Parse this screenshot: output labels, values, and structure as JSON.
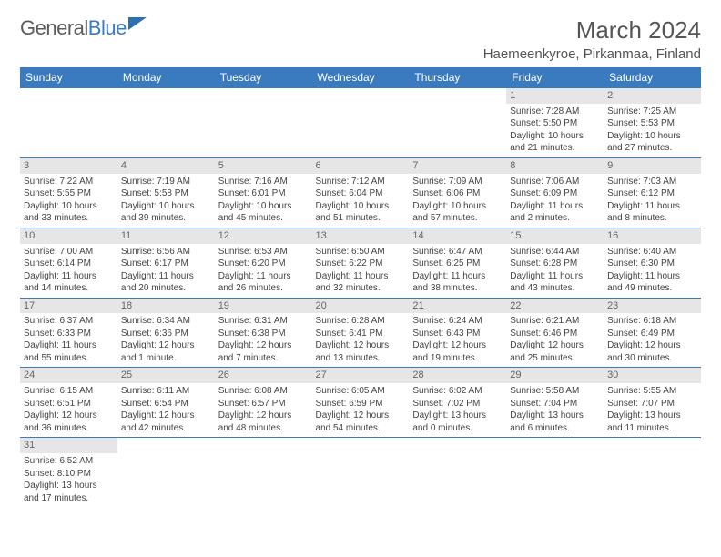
{
  "brand": {
    "part1": "General",
    "part2": "Blue"
  },
  "title": "March 2024",
  "location": "Haemeenkyroe, Pirkanmaa, Finland",
  "colors": {
    "headerBg": "#3a7bbf",
    "headerText": "#ffffff",
    "dayNumBg": "#e6e6e6",
    "text": "#444444",
    "rowBorder": "#3a7bbf"
  },
  "dayNames": [
    "Sunday",
    "Monday",
    "Tuesday",
    "Wednesday",
    "Thursday",
    "Friday",
    "Saturday"
  ],
  "weeks": [
    [
      {
        "n": "",
        "s": "",
        "t": "",
        "d": ""
      },
      {
        "n": "",
        "s": "",
        "t": "",
        "d": ""
      },
      {
        "n": "",
        "s": "",
        "t": "",
        "d": ""
      },
      {
        "n": "",
        "s": "",
        "t": "",
        "d": ""
      },
      {
        "n": "",
        "s": "",
        "t": "",
        "d": ""
      },
      {
        "n": "1",
        "s": "Sunrise: 7:28 AM",
        "t": "Sunset: 5:50 PM",
        "d": "Daylight: 10 hours and 21 minutes."
      },
      {
        "n": "2",
        "s": "Sunrise: 7:25 AM",
        "t": "Sunset: 5:53 PM",
        "d": "Daylight: 10 hours and 27 minutes."
      }
    ],
    [
      {
        "n": "3",
        "s": "Sunrise: 7:22 AM",
        "t": "Sunset: 5:55 PM",
        "d": "Daylight: 10 hours and 33 minutes."
      },
      {
        "n": "4",
        "s": "Sunrise: 7:19 AM",
        "t": "Sunset: 5:58 PM",
        "d": "Daylight: 10 hours and 39 minutes."
      },
      {
        "n": "5",
        "s": "Sunrise: 7:16 AM",
        "t": "Sunset: 6:01 PM",
        "d": "Daylight: 10 hours and 45 minutes."
      },
      {
        "n": "6",
        "s": "Sunrise: 7:12 AM",
        "t": "Sunset: 6:04 PM",
        "d": "Daylight: 10 hours and 51 minutes."
      },
      {
        "n": "7",
        "s": "Sunrise: 7:09 AM",
        "t": "Sunset: 6:06 PM",
        "d": "Daylight: 10 hours and 57 minutes."
      },
      {
        "n": "8",
        "s": "Sunrise: 7:06 AM",
        "t": "Sunset: 6:09 PM",
        "d": "Daylight: 11 hours and 2 minutes."
      },
      {
        "n": "9",
        "s": "Sunrise: 7:03 AM",
        "t": "Sunset: 6:12 PM",
        "d": "Daylight: 11 hours and 8 minutes."
      }
    ],
    [
      {
        "n": "10",
        "s": "Sunrise: 7:00 AM",
        "t": "Sunset: 6:14 PM",
        "d": "Daylight: 11 hours and 14 minutes."
      },
      {
        "n": "11",
        "s": "Sunrise: 6:56 AM",
        "t": "Sunset: 6:17 PM",
        "d": "Daylight: 11 hours and 20 minutes."
      },
      {
        "n": "12",
        "s": "Sunrise: 6:53 AM",
        "t": "Sunset: 6:20 PM",
        "d": "Daylight: 11 hours and 26 minutes."
      },
      {
        "n": "13",
        "s": "Sunrise: 6:50 AM",
        "t": "Sunset: 6:22 PM",
        "d": "Daylight: 11 hours and 32 minutes."
      },
      {
        "n": "14",
        "s": "Sunrise: 6:47 AM",
        "t": "Sunset: 6:25 PM",
        "d": "Daylight: 11 hours and 38 minutes."
      },
      {
        "n": "15",
        "s": "Sunrise: 6:44 AM",
        "t": "Sunset: 6:28 PM",
        "d": "Daylight: 11 hours and 43 minutes."
      },
      {
        "n": "16",
        "s": "Sunrise: 6:40 AM",
        "t": "Sunset: 6:30 PM",
        "d": "Daylight: 11 hours and 49 minutes."
      }
    ],
    [
      {
        "n": "17",
        "s": "Sunrise: 6:37 AM",
        "t": "Sunset: 6:33 PM",
        "d": "Daylight: 11 hours and 55 minutes."
      },
      {
        "n": "18",
        "s": "Sunrise: 6:34 AM",
        "t": "Sunset: 6:36 PM",
        "d": "Daylight: 12 hours and 1 minute."
      },
      {
        "n": "19",
        "s": "Sunrise: 6:31 AM",
        "t": "Sunset: 6:38 PM",
        "d": "Daylight: 12 hours and 7 minutes."
      },
      {
        "n": "20",
        "s": "Sunrise: 6:28 AM",
        "t": "Sunset: 6:41 PM",
        "d": "Daylight: 12 hours and 13 minutes."
      },
      {
        "n": "21",
        "s": "Sunrise: 6:24 AM",
        "t": "Sunset: 6:43 PM",
        "d": "Daylight: 12 hours and 19 minutes."
      },
      {
        "n": "22",
        "s": "Sunrise: 6:21 AM",
        "t": "Sunset: 6:46 PM",
        "d": "Daylight: 12 hours and 25 minutes."
      },
      {
        "n": "23",
        "s": "Sunrise: 6:18 AM",
        "t": "Sunset: 6:49 PM",
        "d": "Daylight: 12 hours and 30 minutes."
      }
    ],
    [
      {
        "n": "24",
        "s": "Sunrise: 6:15 AM",
        "t": "Sunset: 6:51 PM",
        "d": "Daylight: 12 hours and 36 minutes."
      },
      {
        "n": "25",
        "s": "Sunrise: 6:11 AM",
        "t": "Sunset: 6:54 PM",
        "d": "Daylight: 12 hours and 42 minutes."
      },
      {
        "n": "26",
        "s": "Sunrise: 6:08 AM",
        "t": "Sunset: 6:57 PM",
        "d": "Daylight: 12 hours and 48 minutes."
      },
      {
        "n": "27",
        "s": "Sunrise: 6:05 AM",
        "t": "Sunset: 6:59 PM",
        "d": "Daylight: 12 hours and 54 minutes."
      },
      {
        "n": "28",
        "s": "Sunrise: 6:02 AM",
        "t": "Sunset: 7:02 PM",
        "d": "Daylight: 13 hours and 0 minutes."
      },
      {
        "n": "29",
        "s": "Sunrise: 5:58 AM",
        "t": "Sunset: 7:04 PM",
        "d": "Daylight: 13 hours and 6 minutes."
      },
      {
        "n": "30",
        "s": "Sunrise: 5:55 AM",
        "t": "Sunset: 7:07 PM",
        "d": "Daylight: 13 hours and 11 minutes."
      }
    ],
    [
      {
        "n": "31",
        "s": "Sunrise: 6:52 AM",
        "t": "Sunset: 8:10 PM",
        "d": "Daylight: 13 hours and 17 minutes."
      },
      {
        "n": "",
        "s": "",
        "t": "",
        "d": ""
      },
      {
        "n": "",
        "s": "",
        "t": "",
        "d": ""
      },
      {
        "n": "",
        "s": "",
        "t": "",
        "d": ""
      },
      {
        "n": "",
        "s": "",
        "t": "",
        "d": ""
      },
      {
        "n": "",
        "s": "",
        "t": "",
        "d": ""
      },
      {
        "n": "",
        "s": "",
        "t": "",
        "d": ""
      }
    ]
  ]
}
